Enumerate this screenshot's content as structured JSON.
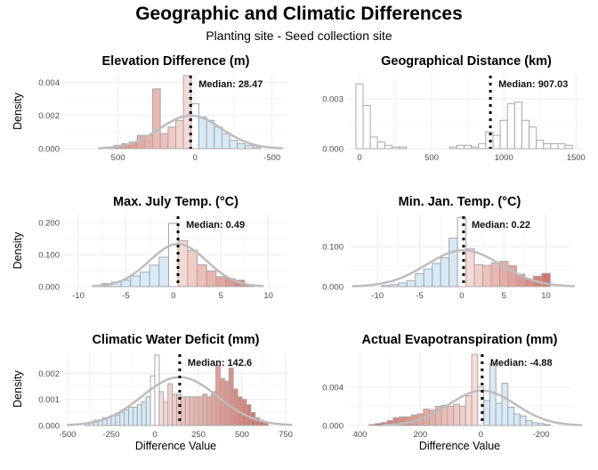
{
  "figure": {
    "title": "Geographic and Climatic Differences",
    "subtitle": "Planting site - Seed collection site"
  },
  "colors": {
    "negative_fill": "#d6eaf8",
    "zero_fill": "#ffffff",
    "positive_low": "#f9e4de",
    "positive_high": "#d4756a",
    "bar_stroke": "#a8a8a8",
    "curve": "#bdbdbd",
    "median_line": "#000000",
    "grid": "#ebebeb",
    "axis_text": "#4d4d4d"
  },
  "chart_data": [
    {
      "type": "bar",
      "title": "Elevation Difference (m)",
      "ylabel": "Density",
      "xlabel": "",
      "xlim": [
        850,
        -600
      ],
      "x_reversed": true,
      "xticks": [
        500,
        0,
        -500
      ],
      "xtick_labels": [
        "500",
        "0",
        "-500"
      ],
      "ylim": [
        0,
        0.0045
      ],
      "yticks": [
        0,
        0.002,
        0.004
      ],
      "ytick_labels": [
        "0.000",
        "0.002",
        "0.004"
      ],
      "bin_width": 50,
      "bin_starts": [
        525,
        475,
        425,
        375,
        325,
        275,
        225,
        175,
        125,
        75,
        25,
        -25,
        -75,
        -125,
        -175,
        -225,
        -275,
        -325,
        -375,
        -425
      ],
      "values": [
        0.0001,
        0.0002,
        0.0003,
        0.0004,
        0.0008,
        0.0008,
        0.0036,
        0.0009,
        0.0013,
        0.0017,
        0.0044,
        0.0027,
        0.0019,
        0.0017,
        0.0013,
        0.0009,
        0.0005,
        0.0003,
        0.0002,
        0.0001
      ],
      "density_curve": {
        "mean": 28.47,
        "sd": 200
      },
      "median": 28.47,
      "median_label": "Median: 28.47",
      "color_scale": "diverging"
    },
    {
      "type": "bar",
      "title": "Geographical Distance (km)",
      "ylabel": "",
      "xlabel": "",
      "xlim": [
        -80,
        1560
      ],
      "x_reversed": false,
      "xticks": [
        0,
        500,
        1000,
        1500
      ],
      "xtick_labels": [
        "0",
        "500",
        "1000",
        "1500"
      ],
      "ylim": [
        0,
        0.0045
      ],
      "yticks": [
        0,
        0.003
      ],
      "ytick_labels": [
        "0.000",
        "0.003"
      ],
      "bin_width": 50,
      "bin_starts": [
        -25,
        25,
        75,
        125,
        175,
        225,
        275,
        625,
        675,
        725,
        775,
        825,
        875,
        925,
        975,
        1025,
        1075,
        1125,
        1175,
        1225,
        1275,
        1325,
        1375,
        1425
      ],
      "values": [
        0.0039,
        0.0026,
        0.0007,
        0.0004,
        0.0002,
        0.0001,
        0.0001,
        0.0001,
        0.0002,
        0.0002,
        0.0001,
        0.0003,
        0.001,
        0.0008,
        0.0017,
        0.0027,
        0.0028,
        0.0017,
        0.0013,
        0.0005,
        0.0003,
        0.0003,
        0.0003,
        0.0002
      ],
      "density_curve": null,
      "median": 907.03,
      "median_label": "Median: 907.03",
      "color_scale": "none"
    },
    {
      "type": "bar",
      "title": "Max. July Temp. (°C)",
      "ylabel": "Density",
      "xlabel": "",
      "xlim": [
        -11.5,
        12
      ],
      "x_reversed": false,
      "xticks": [
        -10,
        -5,
        0,
        5,
        10
      ],
      "xtick_labels": [
        "-10",
        "-5",
        "0",
        "5",
        "10"
      ],
      "ylim": [
        0,
        0.225
      ],
      "yticks": [
        0,
        0.1,
        0.2
      ],
      "ytick_labels": [
        "0.000",
        "0.100",
        "0.200"
      ],
      "bin_width": 1,
      "bin_starts": [
        -8.5,
        -7.5,
        -6.5,
        -5.5,
        -4.5,
        -3.5,
        -2.5,
        -1.5,
        -0.5,
        0.5,
        1.5,
        2.5,
        3.5,
        4.5,
        5.5,
        6.5,
        7.5
      ],
      "values": [
        0.004,
        0.01,
        0.014,
        0.02,
        0.033,
        0.045,
        0.067,
        0.092,
        0.197,
        0.143,
        0.113,
        0.068,
        0.049,
        0.031,
        0.025,
        0.02,
        0.004
      ],
      "density_curve": {
        "mean": 0.49,
        "sd": 3.0
      },
      "median": 0.49,
      "median_label": "Median: 0.49",
      "color_scale": "diverging"
    },
    {
      "type": "bar",
      "title": "Min. Jan. Temp. (°C)",
      "ylabel": "",
      "xlabel": "",
      "xlim": [
        -13.5,
        13
      ],
      "x_reversed": false,
      "xticks": [
        -10,
        -5,
        0,
        5,
        10
      ],
      "xtick_labels": [
        "-10",
        "-5",
        "0",
        "5",
        "10"
      ],
      "ylim": [
        0,
        0.18
      ],
      "yticks": [
        0,
        0.1
      ],
      "ytick_labels": [
        "0.000",
        "0.100"
      ],
      "bin_width": 1,
      "bin_starts": [
        -9.5,
        -8.5,
        -7.5,
        -6.5,
        -5.5,
        -4.5,
        -3.5,
        -2.5,
        -1.5,
        -0.5,
        0.5,
        1.5,
        2.5,
        3.5,
        4.5,
        5.5,
        6.5,
        7.5,
        8.5,
        9.5
      ],
      "values": [
        0.003,
        0.005,
        0.009,
        0.015,
        0.032,
        0.044,
        0.058,
        0.072,
        0.121,
        0.173,
        0.094,
        0.055,
        0.053,
        0.059,
        0.063,
        0.052,
        0.031,
        0.018,
        0.026,
        0.033
      ],
      "density_curve": {
        "mean": 0.22,
        "sd": 4.4
      },
      "median": 0.22,
      "median_label": "Median: 0.22",
      "color_scale": "diverging"
    },
    {
      "type": "bar",
      "title": "Climatic Water Deficit (mm)",
      "ylabel": "Density",
      "xlabel": "Difference Value",
      "xlim": [
        -520,
        760
      ],
      "x_reversed": false,
      "xticks": [
        -500,
        -250,
        0,
        250,
        500,
        750
      ],
      "xtick_labels": [
        "-500",
        "-250",
        "0",
        "250",
        "500",
        "750"
      ],
      "ylim": [
        0,
        0.0028
      ],
      "yticks": [
        0,
        0.001,
        0.002
      ],
      "ytick_labels": [
        "0.000",
        "0.001",
        "0.002"
      ],
      "bin_width": 25,
      "bin_starts": [
        -400,
        -375,
        -350,
        -325,
        -300,
        -275,
        -250,
        -225,
        -200,
        -175,
        -150,
        -125,
        -100,
        -75,
        -50,
        -25,
        0,
        25,
        50,
        75,
        100,
        125,
        150,
        175,
        200,
        225,
        250,
        275,
        300,
        325,
        350,
        375,
        400,
        425,
        450,
        475,
        500,
        525,
        550,
        575,
        600,
        625
      ],
      "values": [
        0.0001,
        0.0001,
        0.0002,
        0.0002,
        0.0003,
        0.0003,
        0.0004,
        0.0004,
        0.0005,
        0.0006,
        0.0007,
        0.0007,
        0.0008,
        0.0009,
        0.0011,
        0.0019,
        0.0027,
        0.0013,
        0.0009,
        0.0016,
        0.0012,
        0.0012,
        0.0011,
        0.0011,
        0.0011,
        0.0011,
        0.0011,
        0.0012,
        0.0011,
        0.0013,
        0.0023,
        0.0018,
        0.0017,
        0.0022,
        0.0014,
        0.0011,
        0.001,
        0.0008,
        0.0005,
        0.0003,
        0.0002,
        0.0001
      ],
      "density_curve": {
        "mean": 142.6,
        "sd": 215
      },
      "median": 142.6,
      "median_label": "Median: 142.6",
      "color_scale": "diverging"
    },
    {
      "type": "bar",
      "title": "Actual Evapotranspiration (mm)",
      "ylabel": "",
      "xlabel": "Difference Value",
      "xlim": [
        440,
        -300
      ],
      "x_reversed": true,
      "xticks": [
        400,
        200,
        0,
        -200
      ],
      "xtick_labels": [
        "400",
        "200",
        "0",
        "-200"
      ],
      "ylim": [
        0,
        0.0076
      ],
      "yticks": [
        0,
        0.004
      ],
      "ytick_labels": [
        "0.000",
        "0.004"
      ],
      "bin_width": 20,
      "bin_starts": [
        350,
        330,
        310,
        290,
        270,
        250,
        230,
        210,
        190,
        170,
        150,
        130,
        110,
        90,
        70,
        50,
        30,
        10,
        -10,
        -30,
        -50,
        -70,
        -90,
        -110,
        -130,
        -150,
        -170,
        -190,
        -210,
        -230
      ],
      "values": [
        0.0001,
        0.0002,
        0.0003,
        0.0005,
        0.0008,
        0.0009,
        0.0009,
        0.0011,
        0.0012,
        0.0017,
        0.0016,
        0.002,
        0.0021,
        0.002,
        0.0022,
        0.002,
        0.0031,
        0.0074,
        0.004,
        0.0026,
        0.0064,
        0.0023,
        0.0044,
        0.0019,
        0.0012,
        0.001,
        0.0005,
        0.0003,
        0.0002,
        0.0001
      ],
      "density_curve": {
        "mean": -4.88,
        "sd": 110
      },
      "median": -4.88,
      "median_label": "Median: -4.88",
      "color_scale": "diverging"
    }
  ]
}
